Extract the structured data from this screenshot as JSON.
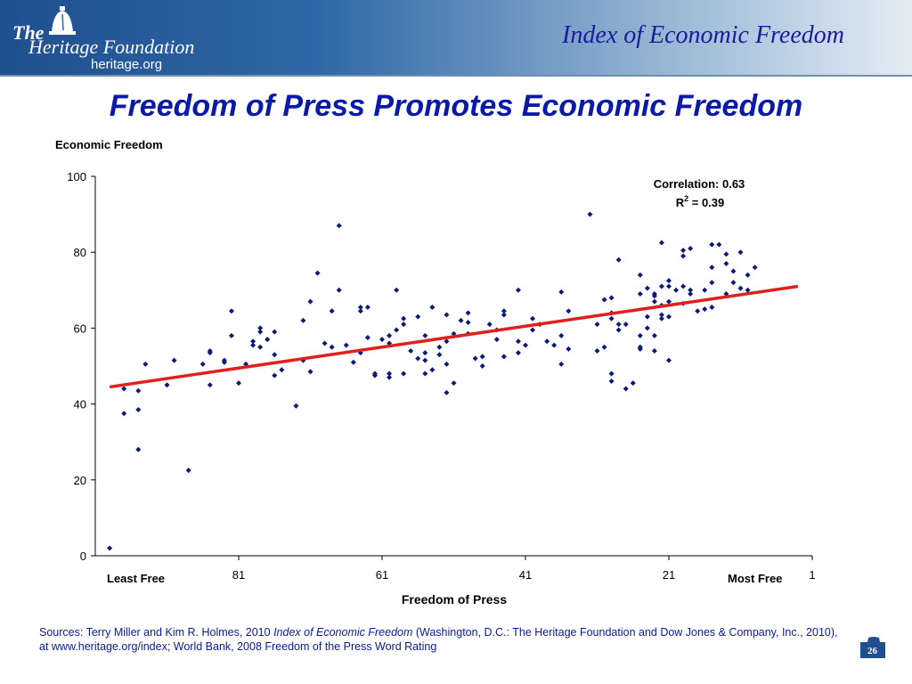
{
  "header": {
    "logo_the": "The",
    "logo_name": "Heritage Foundation",
    "logo_url": "heritage.org",
    "title": "Index of Economic Freedom"
  },
  "slide_title": "Freedom of Press Promotes Economic Freedom",
  "sources": {
    "prefix": "Sources: Terry Miller and Kim R. Holmes, 2010 ",
    "italic": "Index of Economic Freedom",
    "suffix": " (Washington, D.C.: The Heritage Foundation and Dow Jones & Company, Inc., 2010), at www.heritage.org/index; World Bank, 2008 Freedom of the Press Word Rating"
  },
  "page_number": "26",
  "colors": {
    "points": "#0b1a7a",
    "trend": "#e0201c",
    "title": "#0a1aa8"
  },
  "chart_data": {
    "type": "scatter",
    "ylabel": "Economic Freedom",
    "xlabel": "Freedom of Press",
    "x_axis_reversed": true,
    "xlim": [
      101,
      1
    ],
    "ylim": [
      0,
      100
    ],
    "y_ticks": [
      0,
      20,
      40,
      60,
      80,
      100
    ],
    "x_ticks": [
      81,
      61,
      41,
      21,
      1
    ],
    "x_end_labels": {
      "left": "Least Free",
      "right": "Most Free"
    },
    "annotation": {
      "correlation": "Correlation: 0.63",
      "r2_prefix": "R",
      "r2_sup": "2",
      "r2_suffix": " = 0.39"
    },
    "trendline": {
      "x": [
        99,
        3
      ],
      "y": [
        44.5,
        71.0
      ]
    },
    "grid": false,
    "points": [
      [
        99,
        2
      ],
      [
        97,
        37.5
      ],
      [
        97,
        44
      ],
      [
        95,
        28
      ],
      [
        95,
        38.5
      ],
      [
        95,
        43.5
      ],
      [
        94,
        50.5
      ],
      [
        91,
        45
      ],
      [
        90,
        51.5
      ],
      [
        88,
        22.5
      ],
      [
        86,
        50.5
      ],
      [
        85,
        45
      ],
      [
        85,
        53.5
      ],
      [
        85,
        54
      ],
      [
        83,
        51
      ],
      [
        83,
        51.5
      ],
      [
        82,
        58
      ],
      [
        82,
        64.5
      ],
      [
        81,
        45.5
      ],
      [
        80,
        50.5
      ],
      [
        79,
        55.5
      ],
      [
        79,
        56.5
      ],
      [
        78,
        59
      ],
      [
        78,
        55
      ],
      [
        78,
        60
      ],
      [
        77,
        57
      ],
      [
        76,
        53
      ],
      [
        76,
        47.5
      ],
      [
        76,
        59
      ],
      [
        75,
        49
      ],
      [
        73,
        39.5
      ],
      [
        72,
        51.5
      ],
      [
        72,
        62
      ],
      [
        71,
        48.5
      ],
      [
        71,
        67
      ],
      [
        70,
        74.5
      ],
      [
        69,
        56
      ],
      [
        68,
        55
      ],
      [
        68,
        64.5
      ],
      [
        67,
        70
      ],
      [
        67,
        87
      ],
      [
        66,
        55.5
      ],
      [
        65,
        51
      ],
      [
        64,
        64.5
      ],
      [
        64,
        65.5
      ],
      [
        64,
        53.5
      ],
      [
        63,
        57.5
      ],
      [
        63,
        65.5
      ],
      [
        62,
        48
      ],
      [
        62,
        47.5
      ],
      [
        61,
        57
      ],
      [
        60,
        56
      ],
      [
        60,
        58
      ],
      [
        60,
        48
      ],
      [
        60,
        47
      ],
      [
        59,
        59.5
      ],
      [
        59,
        70
      ],
      [
        58,
        61
      ],
      [
        58,
        62.5
      ],
      [
        58,
        48
      ],
      [
        57,
        54
      ],
      [
        56,
        52
      ],
      [
        56,
        63
      ],
      [
        55,
        53.5
      ],
      [
        55,
        58
      ],
      [
        55,
        48
      ],
      [
        55,
        51.5
      ],
      [
        54,
        65.5
      ],
      [
        54,
        49
      ],
      [
        53,
        55
      ],
      [
        53,
        53
      ],
      [
        52,
        56.5
      ],
      [
        52,
        50.5
      ],
      [
        52,
        63.5
      ],
      [
        52,
        43
      ],
      [
        51,
        58.5
      ],
      [
        51,
        45.5
      ],
      [
        50,
        62
      ],
      [
        49,
        64
      ],
      [
        49,
        58.5
      ],
      [
        49,
        61.5
      ],
      [
        48,
        52
      ],
      [
        47,
        50
      ],
      [
        47,
        52.5
      ],
      [
        46,
        61
      ],
      [
        45,
        57
      ],
      [
        45,
        59.5
      ],
      [
        44,
        64.5
      ],
      [
        44,
        63.5
      ],
      [
        44,
        52.5
      ],
      [
        42,
        70
      ],
      [
        42,
        56.5
      ],
      [
        42,
        53.5
      ],
      [
        41,
        55.5
      ],
      [
        40,
        62.5
      ],
      [
        40,
        59.5
      ],
      [
        39,
        61
      ],
      [
        38,
        56.5
      ],
      [
        37,
        55.5
      ],
      [
        36,
        50.5
      ],
      [
        36,
        58
      ],
      [
        36,
        69.5
      ],
      [
        35,
        64.5
      ],
      [
        35,
        54.5
      ],
      [
        32,
        90
      ],
      [
        31,
        61
      ],
      [
        31,
        54
      ],
      [
        30,
        67.5
      ],
      [
        30,
        55
      ],
      [
        29,
        68
      ],
      [
        29,
        64
      ],
      [
        29,
        62.5
      ],
      [
        29,
        48
      ],
      [
        29,
        46
      ],
      [
        28,
        78
      ],
      [
        28,
        59.5
      ],
      [
        28,
        61
      ],
      [
        27,
        44
      ],
      [
        27,
        61
      ],
      [
        26,
        45.5
      ],
      [
        25,
        74
      ],
      [
        25,
        69
      ],
      [
        25,
        58
      ],
      [
        25,
        55
      ],
      [
        25,
        54.5
      ],
      [
        24,
        70.5
      ],
      [
        24,
        63
      ],
      [
        24,
        60
      ],
      [
        23,
        69
      ],
      [
        23,
        67
      ],
      [
        23,
        68.5
      ],
      [
        23,
        58
      ],
      [
        23,
        54
      ],
      [
        22,
        82.5
      ],
      [
        22,
        71
      ],
      [
        22,
        66
      ],
      [
        22,
        63.5
      ],
      [
        22,
        62.5
      ],
      [
        21,
        72.5
      ],
      [
        21,
        71
      ],
      [
        21,
        67
      ],
      [
        21,
        63
      ],
      [
        21,
        51.5
      ],
      [
        20,
        70
      ],
      [
        19,
        66.5
      ],
      [
        19,
        71
      ],
      [
        19,
        79
      ],
      [
        19,
        80.5
      ],
      [
        18,
        81
      ],
      [
        18,
        69
      ],
      [
        18,
        70
      ],
      [
        17,
        64.5
      ],
      [
        16,
        65
      ],
      [
        16,
        70
      ],
      [
        15,
        82
      ],
      [
        15,
        65.5
      ],
      [
        15,
        76
      ],
      [
        15,
        72
      ],
      [
        14,
        82
      ],
      [
        13,
        79.5
      ],
      [
        13,
        77
      ],
      [
        13,
        69
      ],
      [
        12,
        72
      ],
      [
        12,
        75
      ],
      [
        11,
        80
      ],
      [
        11,
        70.5
      ],
      [
        10,
        74
      ],
      [
        10,
        70
      ],
      [
        9,
        76
      ]
    ]
  }
}
